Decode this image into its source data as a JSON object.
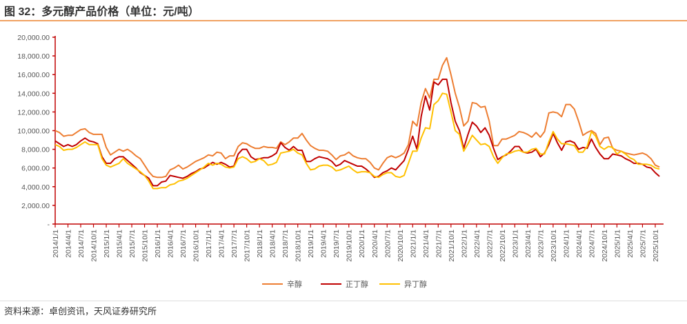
{
  "title": "图 32：多元醇产品价格（单位：元/吨）",
  "source": "资料来源：卓创资讯，天风证券研究所",
  "chart_data": {
    "type": "line",
    "title": "",
    "xlabel": "",
    "ylabel": "",
    "ylim": [
      0,
      20000
    ],
    "yticks": [
      0,
      2000,
      4000,
      6000,
      8000,
      10000,
      12000,
      14000,
      16000,
      18000,
      20000
    ],
    "ytick_labels": [
      "-",
      "2,000.00",
      "4,000.00",
      "6,000.00",
      "8,000.00",
      "10,000.00",
      "12,000.00",
      "14,000.00",
      "16,000.00",
      "18,000.00",
      "20,000.00"
    ],
    "xtick_labels": [
      "2014/1/1",
      "2014/4/1",
      "2014/7/1",
      "2014/10/1",
      "2015/1/1",
      "2015/4/1",
      "2015/7/1",
      "2015/10/1",
      "2016/1/1",
      "2016/4/1",
      "2016/7/1",
      "2016/10/1",
      "2017/1/1",
      "2017/4/1",
      "2017/7/1",
      "2017/10/1",
      "2018/1/1",
      "2018/4/1",
      "2018/7/1",
      "2018/10/1",
      "2019/1/1",
      "2019/4/1",
      "2019/7/1",
      "2019/10/1",
      "2020/1/1",
      "2020/4/1",
      "2020/7/1",
      "2020/10/1",
      "2021/1/1",
      "2021/4/1",
      "2021/7/1",
      "2021/10/1",
      "2022/1/1",
      "2022/4/1",
      "2022/7/1",
      "2022/10/1",
      "2023/1/1",
      "2023/4/1",
      "2023/7/1",
      "2023/10/1",
      "2024/1/1",
      "2024/4/1",
      "2024/7/1",
      "2024/10/1",
      "2025/1/1",
      "2025/4/1",
      "2025/7/1",
      "2025/10/1"
    ],
    "x_frequency": "monthly",
    "grid": false,
    "legend": "bottom",
    "series": [
      {
        "name": "辛醇",
        "color": "#ed7d31",
        "values": [
          10000,
          9800,
          9400,
          9500,
          9500,
          9800,
          10100,
          10200,
          9800,
          9600,
          9600,
          9600,
          8200,
          7400,
          7700,
          8000,
          7800,
          8000,
          7700,
          7300,
          7000,
          6300,
          5600,
          5100,
          5000,
          5000,
          5100,
          5800,
          6000,
          6300,
          5900,
          6100,
          6400,
          6700,
          6900,
          7100,
          7400,
          7300,
          7700,
          7600,
          7000,
          7300,
          7300,
          8300,
          8700,
          8600,
          8300,
          8100,
          8100,
          8300,
          8200,
          8200,
          8100,
          8800,
          8500,
          8800,
          9200,
          9200,
          9700,
          9000,
          8400,
          8100,
          7900,
          7900,
          7800,
          7400,
          6900,
          7300,
          7400,
          7700,
          7300,
          7100,
          7000,
          7000,
          6600,
          6000,
          5800,
          6500,
          7100,
          7300,
          7100,
          7300,
          7600,
          8500,
          11000,
          10500,
          13000,
          14500,
          13500,
          15500,
          15500,
          17000,
          17800,
          16000,
          14000,
          12500,
          10500,
          11000,
          13000,
          12900,
          12500,
          12600,
          11000,
          8400,
          8400,
          9100,
          9100,
          9300,
          9500,
          9900,
          9800,
          9600,
          9300,
          9800,
          9300,
          9900,
          11900,
          12000,
          11900,
          11500,
          12800,
          12800,
          12300,
          11000,
          9500,
          9800,
          10000,
          9700,
          8500,
          9200,
          9300,
          8100,
          7900,
          7800,
          7600,
          7500,
          7400,
          7500,
          7600,
          7400,
          7000,
          6300,
          6100
        ]
      },
      {
        "name": "正丁醇",
        "color": "#c00000",
        "values": [
          8900,
          8600,
          8300,
          8500,
          8300,
          8500,
          8900,
          9200,
          8900,
          8800,
          8600,
          7200,
          6500,
          6500,
          7000,
          7200,
          7200,
          6800,
          6400,
          6000,
          5500,
          5200,
          4900,
          4100,
          4100,
          4500,
          4600,
          5200,
          5100,
          5000,
          4900,
          5100,
          5400,
          5600,
          5900,
          6000,
          6300,
          6600,
          6400,
          6600,
          6400,
          6100,
          6200,
          7500,
          8000,
          8000,
          7200,
          6900,
          7000,
          7100,
          7100,
          7300,
          7600,
          8700,
          8200,
          7900,
          8300,
          7900,
          7900,
          6700,
          6700,
          7000,
          7200,
          7100,
          7000,
          6700,
          6200,
          6400,
          6800,
          6600,
          6400,
          6200,
          6200,
          5900,
          5500,
          5000,
          5100,
          5500,
          5700,
          6000,
          5800,
          6300,
          6800,
          8000,
          9400,
          8000,
          11500,
          13700,
          12200,
          15200,
          14900,
          15500,
          15500,
          13000,
          11000,
          10000,
          8100,
          9600,
          10900,
          10500,
          9800,
          10300,
          9500,
          8100,
          6900,
          7200,
          7400,
          7800,
          8300,
          8300,
          7700,
          7600,
          7700,
          8000,
          7200,
          7600,
          8500,
          9700,
          8700,
          7900,
          8800,
          8900,
          8700,
          8000,
          8200,
          8100,
          9100,
          8200,
          7500,
          7000,
          7000,
          7500,
          7400,
          7300,
          7000,
          6800,
          6500,
          6500,
          6400,
          6100,
          6000,
          5500,
          5100
        ]
      },
      {
        "name": "异丁醇",
        "color": "#ffc000",
        "values": [
          8500,
          8300,
          7900,
          8000,
          8000,
          8200,
          8500,
          8800,
          8500,
          8500,
          8500,
          7000,
          6300,
          6100,
          6300,
          6500,
          7000,
          6500,
          6200,
          5900,
          5600,
          5200,
          4600,
          3800,
          3800,
          3900,
          3900,
          4200,
          4300,
          4600,
          4700,
          4900,
          5200,
          5500,
          5800,
          6100,
          6500,
          6300,
          6500,
          6400,
          6100,
          6000,
          6100,
          7000,
          7200,
          7000,
          6600,
          6700,
          7000,
          6800,
          6300,
          6400,
          6600,
          7600,
          7700,
          7800,
          8000,
          7600,
          7400,
          6500,
          5800,
          5900,
          6200,
          6300,
          6300,
          6100,
          5700,
          5800,
          6000,
          6200,
          5800,
          5500,
          5600,
          5600,
          5500,
          5100,
          5000,
          5300,
          5500,
          5500,
          5100,
          5000,
          5200,
          6500,
          7800,
          7800,
          9200,
          10300,
          10200,
          12800,
          13200,
          14000,
          13900,
          12000,
          10000,
          9600,
          7800,
          8600,
          9500,
          9000,
          8500,
          8600,
          8300,
          7200,
          6500,
          7100,
          7500,
          7600,
          7800,
          7900,
          7700,
          7700,
          8000,
          8100,
          7500,
          7500,
          8800,
          9900,
          9100,
          8600,
          8600,
          8500,
          8400,
          7700,
          7700,
          8300,
          9900,
          9400,
          8300,
          8000,
          8300,
          8200,
          7500,
          7800,
          7500,
          7100,
          6900,
          6400,
          6400,
          6400,
          6300,
          6000,
          5900
        ]
      }
    ]
  }
}
